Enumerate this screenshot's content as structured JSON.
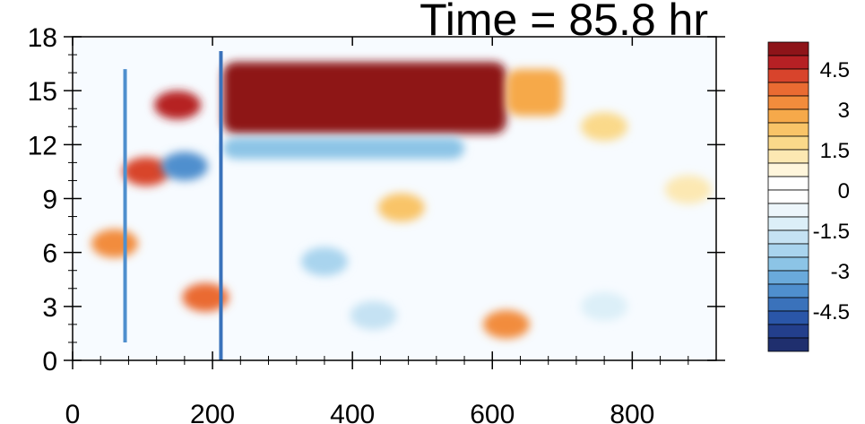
{
  "chart_data": {
    "type": "heatmap",
    "title": "Time = 85.8 hr",
    "xlabel": "",
    "ylabel": "",
    "xlim": [
      0,
      920
    ],
    "ylim": [
      0,
      18
    ],
    "x_ticks": [
      0,
      200,
      400,
      600,
      800
    ],
    "x_tick_labels": [
      "0",
      "200",
      "400",
      "600",
      "800"
    ],
    "y_ticks": [
      0,
      3,
      6,
      9,
      12,
      15,
      18
    ],
    "y_tick_labels": [
      "0",
      "3",
      "6",
      "9",
      "12",
      "15",
      "18"
    ],
    "colorbar": {
      "levels": [
        -5.5,
        -5,
        -4.5,
        -4,
        -3.5,
        -3,
        -2.5,
        -2,
        -1.5,
        -1,
        -0.5,
        0,
        0.5,
        1,
        1.5,
        2,
        2.5,
        3,
        3.5,
        4,
        4.5,
        5
      ],
      "colors": [
        "#1f2f6e",
        "#233f8c",
        "#2a56a8",
        "#3a72bb",
        "#4f8fce",
        "#6aaadb",
        "#8cc4e6",
        "#a9d4ee",
        "#c5e2f3",
        "#dceff8",
        "#edf6fb",
        "#ffffff",
        "#ffffff",
        "#fff6dc",
        "#fce8b2",
        "#fad98a",
        "#f9c468",
        "#f6a94a",
        "#f28c3c",
        "#ea6b32",
        "#d8442c",
        "#b62024",
        "#8e1419"
      ],
      "tick_values": [
        4.5,
        3,
        1.5,
        0,
        -1.5,
        -3,
        -4.5
      ],
      "tick_labels": [
        "4.5",
        "3",
        "1.5",
        "0",
        "-1.5",
        "-3",
        "-4.5"
      ]
    },
    "features": [
      {
        "kind": "band",
        "x": [
          215,
          620
        ],
        "y": [
          12.6,
          16.6
        ],
        "value": 5.5
      },
      {
        "kind": "band",
        "x": [
          620,
          700
        ],
        "y": [
          13.6,
          16.2
        ],
        "value": 2.5
      },
      {
        "kind": "band",
        "x": [
          215,
          560
        ],
        "y": [
          11.2,
          12.4
        ],
        "value": -3.0
      },
      {
        "kind": "blob",
        "x": 150,
        "y": 14.2,
        "value": 4.5
      },
      {
        "kind": "blob",
        "x": 105,
        "y": 10.5,
        "value": 4.0
      },
      {
        "kind": "blob",
        "x": 160,
        "y": 10.8,
        "value": -4.0
      },
      {
        "kind": "blob",
        "x": 190,
        "y": 3.5,
        "value": 3.5
      },
      {
        "kind": "blob",
        "x": 620,
        "y": 2.0,
        "value": 3.0
      },
      {
        "kind": "blob",
        "x": 60,
        "y": 6.5,
        "value": 3.0
      },
      {
        "kind": "blob",
        "x": 470,
        "y": 8.5,
        "value": 2.0
      },
      {
        "kind": "blob",
        "x": 360,
        "y": 5.5,
        "value": -2.5
      },
      {
        "kind": "blob",
        "x": 430,
        "y": 2.5,
        "value": -2.0
      },
      {
        "kind": "blob",
        "x": 760,
        "y": 13.0,
        "value": 1.5
      },
      {
        "kind": "blob",
        "x": 880,
        "y": 9.5,
        "value": 1.0
      },
      {
        "kind": "blob",
        "x": 760,
        "y": 3.0,
        "value": -1.5
      },
      {
        "kind": "line",
        "x": 212,
        "y": [
          0,
          17.2
        ],
        "value": -4.5
      },
      {
        "kind": "line",
        "x": 75,
        "y": [
          1,
          16.2
        ],
        "value": -4.0
      }
    ]
  }
}
